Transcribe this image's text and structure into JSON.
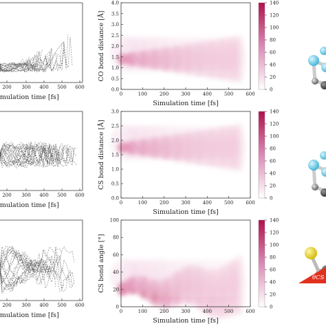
{
  "chart_data": [
    {
      "type": "line",
      "xlabel": "Simulation time [fs]",
      "xticks": [
        "200",
        "300",
        "400",
        "500",
        "600"
      ]
    },
    {
      "type": "heatmap",
      "xlabel": "Simulation time [fs]",
      "ylabel": "CO bond distance [Å]",
      "xlim": [
        0,
        600
      ],
      "ylim": [
        0,
        4
      ],
      "xticks": [
        "0",
        "100",
        "200",
        "300",
        "400",
        "500",
        "600"
      ],
      "yticks": [
        "0.0",
        "0.5",
        "1.0",
        "1.5",
        "2.0",
        "2.5",
        "3.0",
        "3.5",
        "4.0"
      ],
      "colorbar_ticks": [
        "0",
        "20",
        "40",
        "60",
        "80",
        "100",
        "120",
        "140"
      ],
      "colorbar_range": [
        0,
        140
      ],
      "density_center": 1.4
    },
    {
      "type": "line",
      "xlabel": "Simulation time [fs]",
      "xticks": [
        "200",
        "300",
        "400",
        "500",
        "600"
      ]
    },
    {
      "type": "heatmap",
      "xlabel": "Simulation time [fs]",
      "ylabel": "CS bond distance [Å]",
      "xlim": [
        0,
        600
      ],
      "ylim": [
        0,
        3
      ],
      "xticks": [
        "0",
        "100",
        "200",
        "300",
        "400",
        "500",
        "600"
      ],
      "yticks": [
        "0.0",
        "0.5",
        "1.0",
        "1.5",
        "2.0",
        "2.5",
        "3.0"
      ],
      "colorbar_ticks": [
        "0",
        "20",
        "40",
        "60",
        "80",
        "100",
        "120",
        "140"
      ],
      "colorbar_range": [
        0,
        140
      ],
      "density_center": 1.75
    },
    {
      "type": "line",
      "xlabel": "Simulation time [fs]",
      "xticks": [
        "200",
        "300",
        "400",
        "500",
        "600"
      ]
    },
    {
      "type": "heatmap",
      "xlabel": "Simulation time [fs]",
      "ylabel": "CS bond angle [°]",
      "xlim": [
        0,
        600
      ],
      "ylim": [
        0,
        100
      ],
      "xticks": [
        "0",
        "100",
        "200",
        "300",
        "400",
        "500",
        "600"
      ],
      "yticks": [
        "0",
        "20",
        "40",
        "60",
        "80",
        "100"
      ],
      "colorbar_ticks": [
        "0",
        "20",
        "40",
        "60",
        "80",
        "100",
        "120",
        "140"
      ],
      "colorbar_range": [
        0,
        140
      ],
      "density_center": 20
    }
  ],
  "annotation": "θCS",
  "colors": {
    "density": "#c2185b",
    "density_light": "#f3d3e3",
    "trajectory": "#555555",
    "atom_cyan": "#5ec8e6",
    "atom_grey": "#8a8a8a",
    "atom_sulfur": "#e8d21a",
    "angle_marker": "#e0301e"
  }
}
